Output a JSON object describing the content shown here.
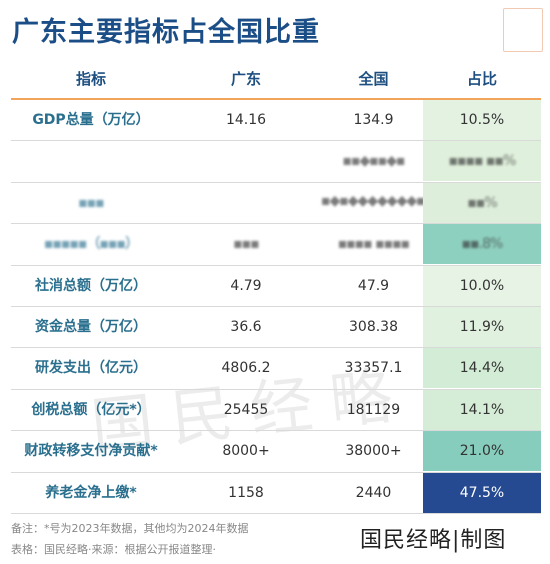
{
  "title": "广东主要指标占全国比重",
  "columns": [
    "指标",
    "广东",
    "全国",
    "占比"
  ],
  "rows": [
    {
      "label": "GDP总量（万亿）",
      "gd": "14.16",
      "nation": "134.9",
      "share": "10.5%",
      "share_color": "#e4f2e2",
      "blur": false
    },
    {
      "label": "",
      "gd": "",
      "nation": "▪▪◆▪▪◆▪  ▪◆▪◆◆◆◆◆◆◆▪▪▪▪",
      "share": "▪▪▪▪  ▪▪%",
      "share_color": "#dff0dc",
      "blur": true
    },
    {
      "label": "▪▪▪",
      "gd": "",
      "nation": "",
      "share": "▪▪%",
      "share_color": "#ddeedb",
      "blur": true
    },
    {
      "label": "▪▪▪▪▪（▪▪▪）",
      "gd": "▪▪▪",
      "nation": "▪▪▪▪   ▪▪▪▪",
      "share": "▪▪.8%",
      "share_color": "#8ed0bf",
      "blur": true
    },
    {
      "label": "社消总额（万亿）",
      "gd": "4.79",
      "nation": "47.9",
      "share": "10.0%",
      "share_color": "#e7f3e4",
      "blur": false
    },
    {
      "label": "资金总量（万亿）",
      "gd": "36.6",
      "nation": "308.38",
      "share": "11.9%",
      "share_color": "#e1f1df",
      "blur": false
    },
    {
      "label": "研发支出（亿元）",
      "gd": "4806.2",
      "nation": "33357.1",
      "share": "14.4%",
      "share_color": "#d3ecd5",
      "blur": false
    },
    {
      "label": "创税总额（亿元*）",
      "gd": "25455",
      "nation": "181129",
      "share": "14.1%",
      "share_color": "#d5edd6",
      "blur": false
    },
    {
      "label": "财政转移支付净贡献*",
      "gd": "8000+",
      "nation": "38000+",
      "share": "21.0%",
      "share_color": "#86cdbd",
      "blur": false
    },
    {
      "label": "养老金净上缴*",
      "gd": "1158",
      "nation": "2440",
      "share": "47.5%",
      "share_color": "#254a91",
      "blur": false
    }
  ],
  "footnote": "备注：*号为2023年数据，其他均为2024年数据",
  "source": "表格：国民经略·来源：根据公开报道整理·",
  "brand": "国民经略|制图",
  "watermark": "国民经略"
}
